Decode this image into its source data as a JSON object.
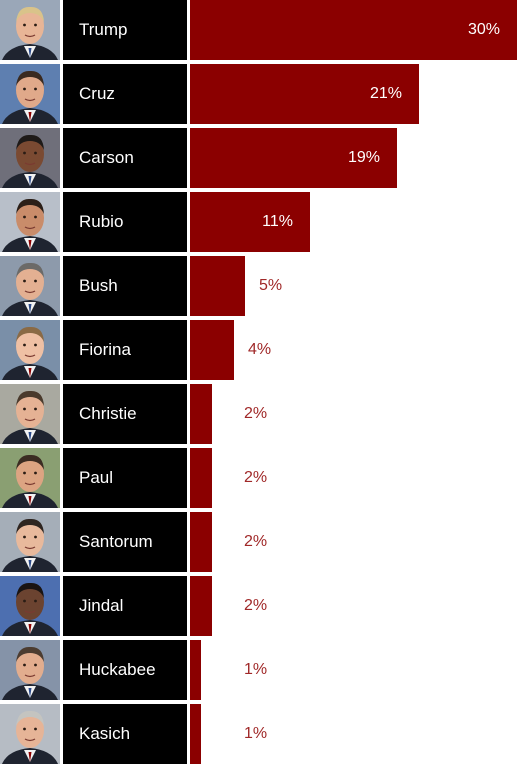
{
  "chart_data": {
    "type": "bar",
    "orientation": "horizontal",
    "categories": [
      "Trump",
      "Cruz",
      "Carson",
      "Rubio",
      "Bush",
      "Fiorina",
      "Christie",
      "Paul",
      "Santorum",
      "Jindal",
      "Huckabee",
      "Kasich"
    ],
    "values": [
      30,
      21,
      19,
      11,
      5,
      4,
      2,
      2,
      2,
      2,
      1,
      1
    ],
    "value_labels": [
      "30%",
      "21%",
      "19%",
      "11%",
      "5%",
      "4%",
      "2%",
      "2%",
      "2%",
      "2%",
      "1%",
      "1%"
    ],
    "xlim": [
      0,
      30
    ],
    "bar_color": "#8b0000",
    "name_box_color": "#000000",
    "label_inside_color": "#ffffff",
    "label_outside_color": "#a02828",
    "portraits": [
      "trump-photo",
      "cruz-photo",
      "carson-photo",
      "rubio-photo",
      "bush-photo",
      "fiorina-photo",
      "christie-photo",
      "paul-photo",
      "santorum-photo",
      "jindal-photo",
      "huckabee-photo",
      "kasich-photo"
    ]
  }
}
